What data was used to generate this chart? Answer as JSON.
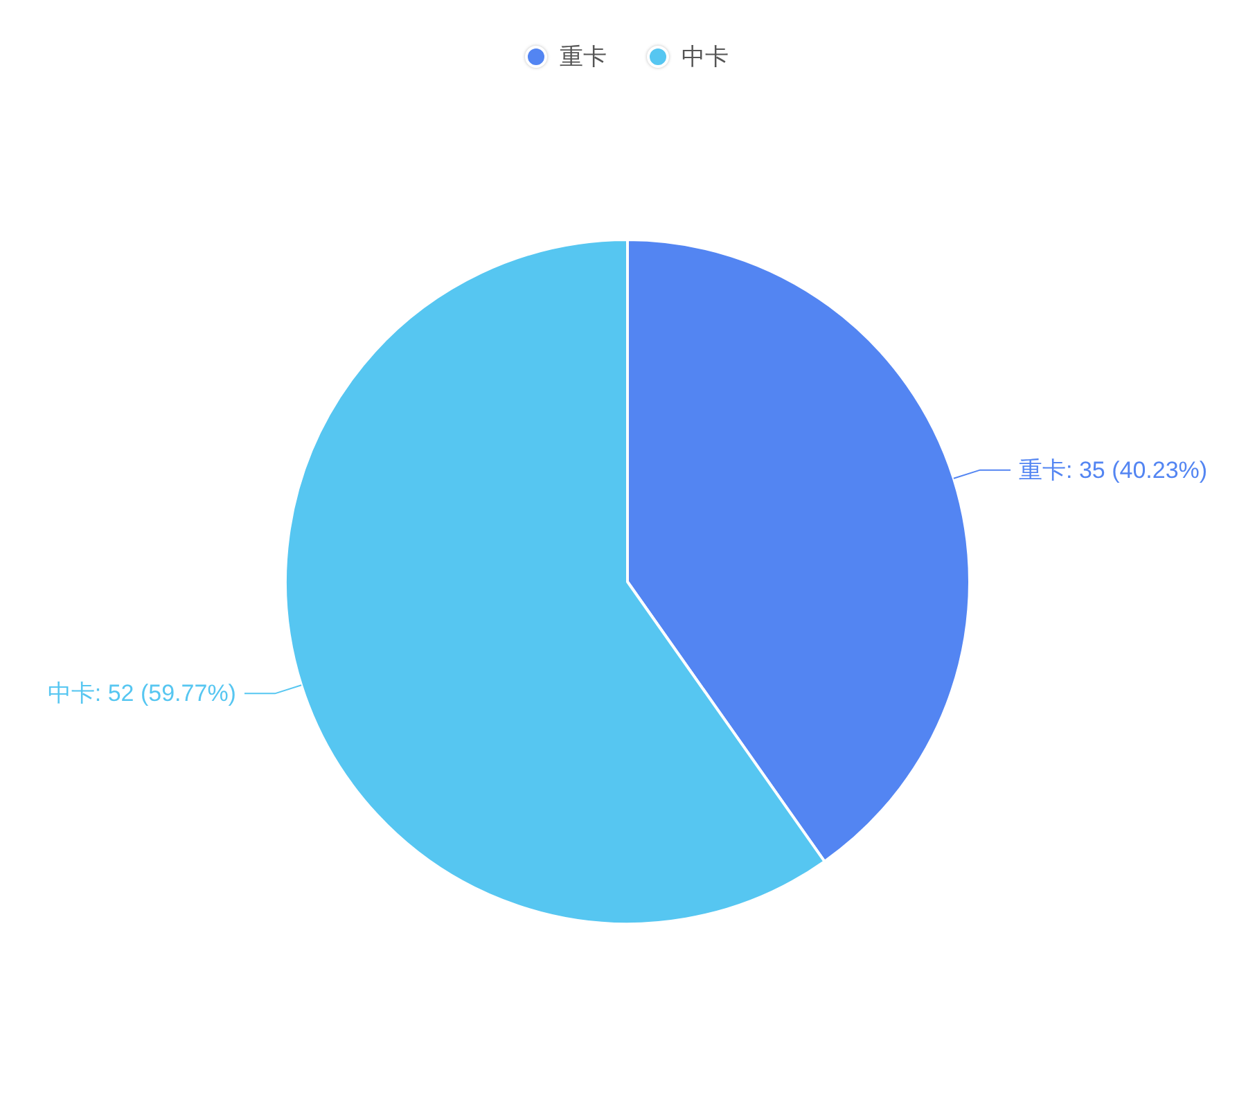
{
  "chart_data": {
    "type": "pie",
    "categories": [
      "重卡",
      "中卡"
    ],
    "values": [
      35,
      52
    ],
    "colors": [
      "#5385f2",
      "#56c6f1"
    ],
    "value_labels": [
      "重卡: 35 (40.23%)",
      "中卡: 52 (59.77%)"
    ],
    "legend": "top"
  }
}
